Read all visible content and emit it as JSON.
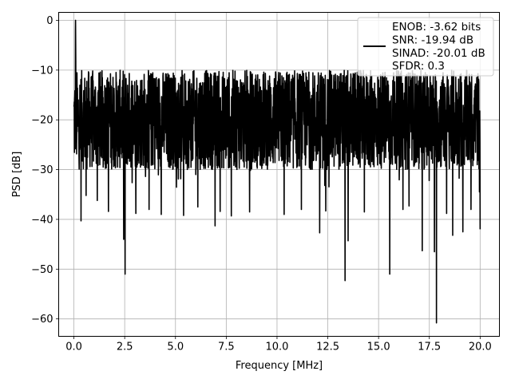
{
  "chart_data": {
    "type": "line",
    "xlabel": "Frequency [MHz]",
    "ylabel": "PSD [dB]",
    "xlim": [
      -0.75,
      20.95
    ],
    "ylim": [
      -63.5,
      1.6
    ],
    "xticks": [
      0.0,
      2.5,
      5.0,
      7.5,
      10.0,
      12.5,
      15.0,
      17.5,
      20.0
    ],
    "xtick_labels": [
      "0.0",
      "2.5",
      "5.0",
      "7.5",
      "10.0",
      "12.5",
      "15.0",
      "17.5",
      "20.0"
    ],
    "yticks": [
      0,
      -10,
      -20,
      -30,
      -40,
      -50,
      -60
    ],
    "ytick_labels": [
      "0",
      "−10",
      "−20",
      "−30",
      "−40",
      "−50",
      "−60"
    ],
    "grid": true,
    "legend_position": "top-right",
    "series": [
      {
        "name": "ENOB: -3.62 bits\nSNR: -19.94 dB\nSINAD: -20.01 dB\nSFDR: 0.3",
        "color": "#000000",
        "x_range": [
          0,
          20
        ],
        "noise_band": [
          -30,
          -10
        ],
        "peak": {
          "x": 0.08,
          "y": 0
        },
        "dips": [
          {
            "x": 0.35,
            "y": -40.3
          },
          {
            "x": 0.6,
            "y": -35.2
          },
          {
            "x": 1.15,
            "y": -36.2
          },
          {
            "x": 1.7,
            "y": -38.4
          },
          {
            "x": 2.45,
            "y": -44.0
          },
          {
            "x": 2.52,
            "y": -51.0
          },
          {
            "x": 3.05,
            "y": -38.8
          },
          {
            "x": 3.7,
            "y": -38.0
          },
          {
            "x": 4.3,
            "y": -39.0
          },
          {
            "x": 5.4,
            "y": -39.2
          },
          {
            "x": 6.1,
            "y": -37.5
          },
          {
            "x": 6.95,
            "y": -41.3
          },
          {
            "x": 7.2,
            "y": -38.4
          },
          {
            "x": 7.75,
            "y": -39.3
          },
          {
            "x": 8.65,
            "y": -38.5
          },
          {
            "x": 10.35,
            "y": -39.0
          },
          {
            "x": 11.2,
            "y": -38.0
          },
          {
            "x": 12.1,
            "y": -42.7
          },
          {
            "x": 12.4,
            "y": -38.3
          },
          {
            "x": 13.35,
            "y": -52.3
          },
          {
            "x": 13.5,
            "y": -44.3
          },
          {
            "x": 14.3,
            "y": -38.5
          },
          {
            "x": 15.55,
            "y": -51.0
          },
          {
            "x": 16.2,
            "y": -38.0
          },
          {
            "x": 16.5,
            "y": -37.3
          },
          {
            "x": 17.15,
            "y": -46.3
          },
          {
            "x": 17.75,
            "y": -46.5
          },
          {
            "x": 17.85,
            "y": -60.8
          },
          {
            "x": 18.35,
            "y": -38.8
          },
          {
            "x": 18.65,
            "y": -43.2
          },
          {
            "x": 19.15,
            "y": -42.5
          },
          {
            "x": 19.55,
            "y": -38.0
          },
          {
            "x": 20.0,
            "y": -42.0
          }
        ]
      }
    ]
  }
}
